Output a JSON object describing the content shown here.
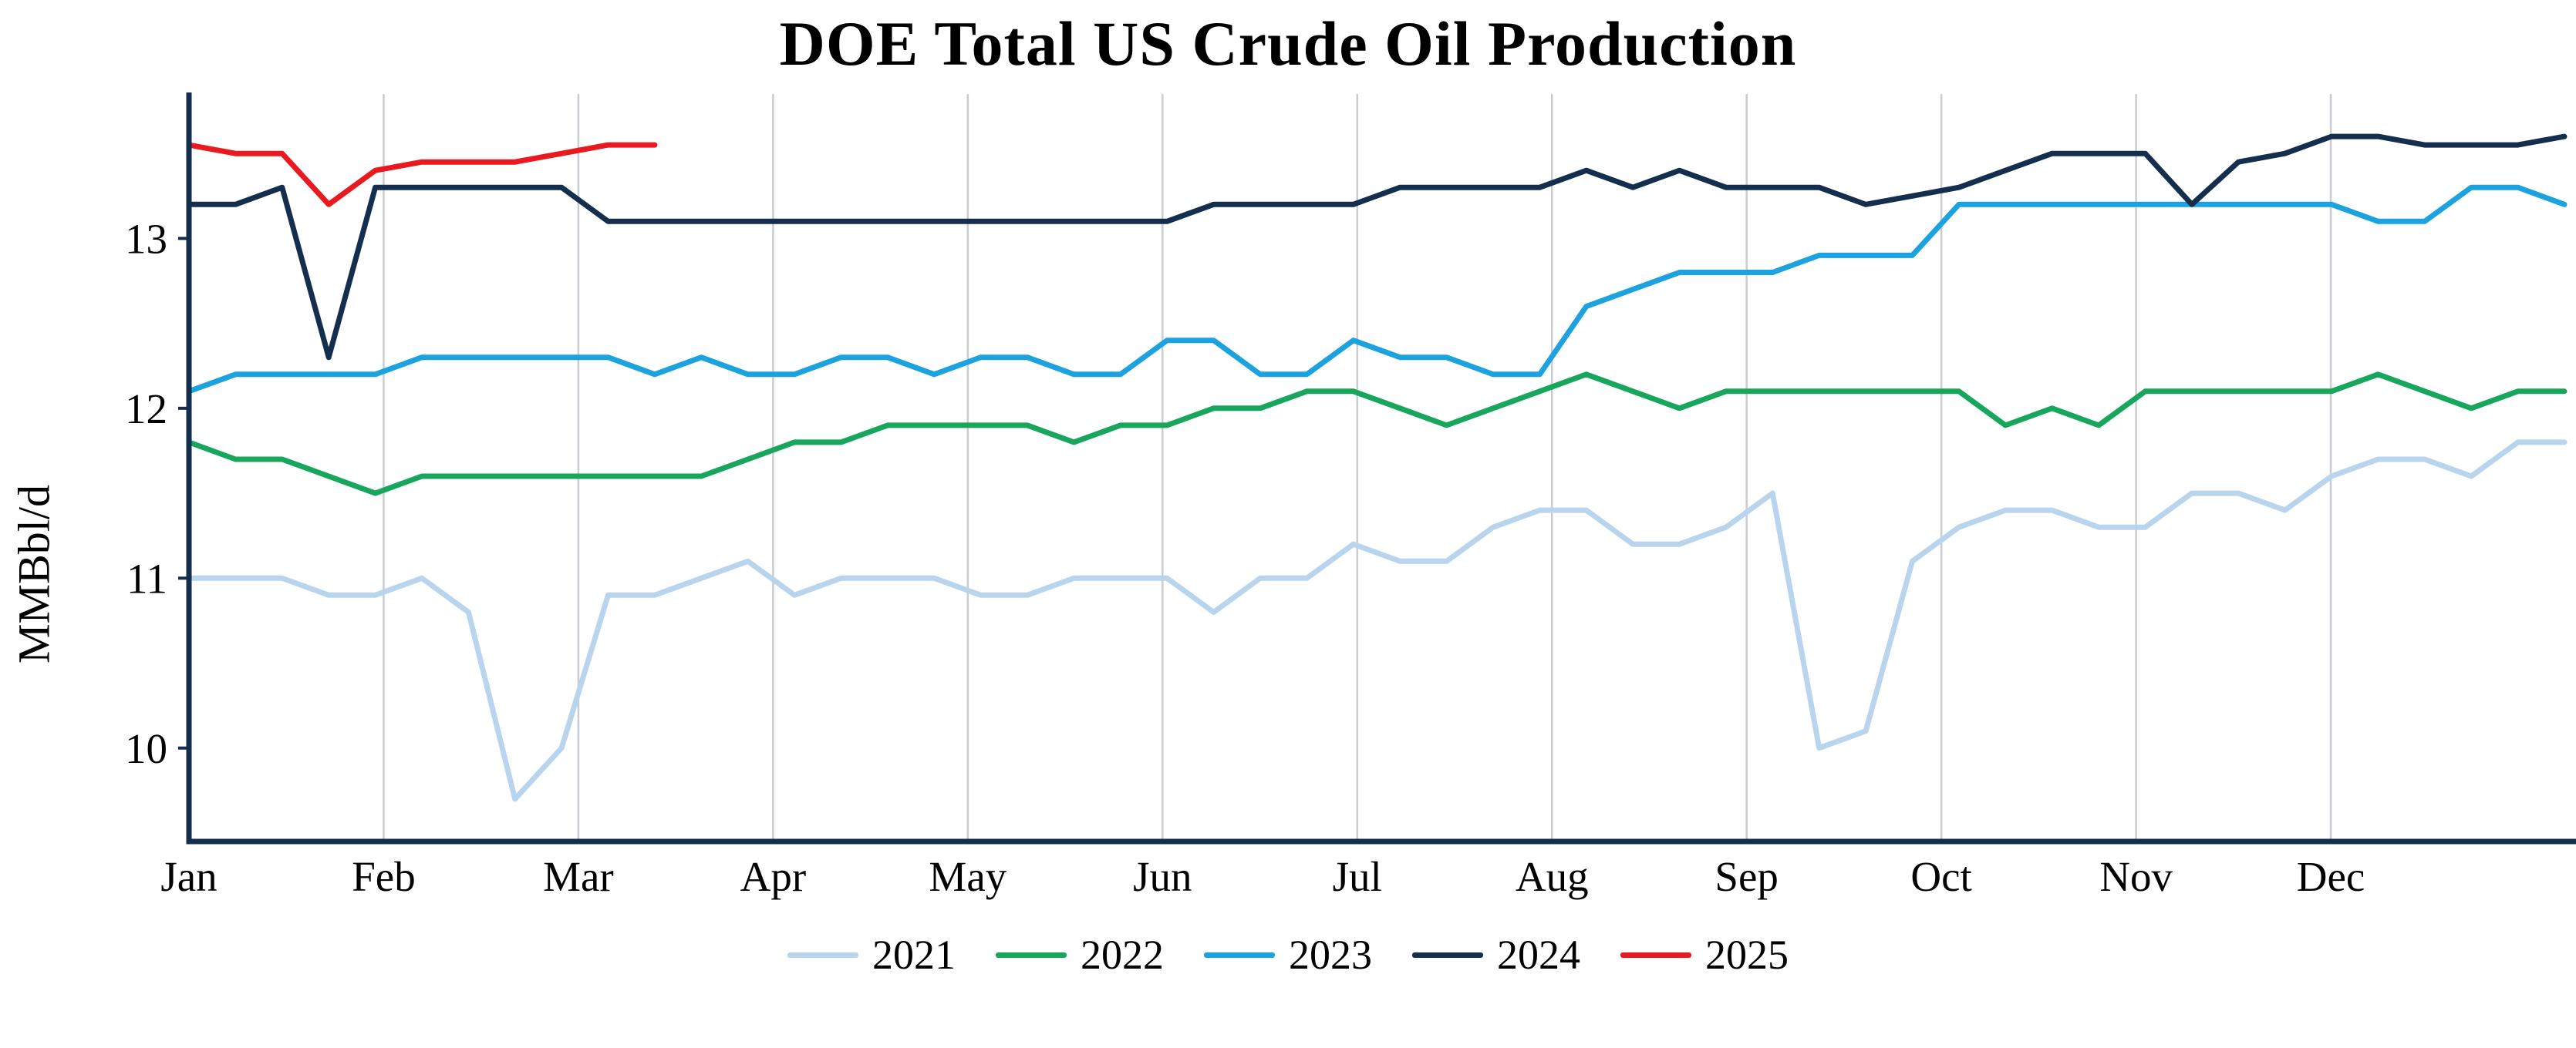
{
  "chart_data": {
    "type": "line",
    "title": "DOE Total US Crude Oil Production",
    "xlabel": "",
    "ylabel": "MMBbl/d",
    "x_unit": "week of year",
    "x_tick_labels": [
      "Jan",
      "Feb",
      "Mar",
      "Apr",
      "May",
      "Jun",
      "Jul",
      "Aug",
      "Sep",
      "Oct",
      "Nov",
      "Dec"
    ],
    "y_ticks": [
      10,
      11,
      12,
      13
    ],
    "ylim": [
      9.45,
      13.85
    ],
    "weeks_per_year": 52,
    "grid": "vertical-month-gridlines-only",
    "legend_position": "bottom-center",
    "axis_color": "#142f4d",
    "gridline_color": "#c9ccd1",
    "series": [
      {
        "name": "2021",
        "color": "#b9d5ee",
        "values": [
          11.0,
          11.0,
          11.0,
          10.9,
          10.9,
          11.0,
          10.8,
          9.7,
          10.0,
          10.9,
          10.9,
          11.0,
          11.1,
          10.9,
          11.0,
          11.0,
          11.0,
          10.9,
          10.9,
          11.0,
          11.0,
          11.0,
          10.8,
          11.0,
          11.0,
          11.2,
          11.1,
          11.1,
          11.3,
          11.4,
          11.4,
          11.2,
          11.2,
          11.3,
          11.5,
          10.0,
          10.1,
          11.1,
          11.3,
          11.4,
          11.4,
          11.3,
          11.3,
          11.5,
          11.5,
          11.4,
          11.6,
          11.7,
          11.7,
          11.6,
          11.8,
          11.8
        ]
      },
      {
        "name": "2022",
        "color": "#18a55c",
        "values": [
          11.8,
          11.7,
          11.7,
          11.6,
          11.5,
          11.6,
          11.6,
          11.6,
          11.6,
          11.6,
          11.6,
          11.6,
          11.7,
          11.8,
          11.8,
          11.9,
          11.9,
          11.9,
          11.9,
          11.8,
          11.9,
          11.9,
          12.0,
          12.0,
          12.1,
          12.1,
          12.0,
          11.9,
          12.0,
          12.1,
          12.2,
          12.1,
          12.0,
          12.1,
          12.1,
          12.1,
          12.1,
          12.1,
          12.1,
          11.9,
          12.0,
          11.9,
          12.1,
          12.1,
          12.1,
          12.1,
          12.1,
          12.2,
          12.1,
          12.0,
          12.1,
          12.1
        ]
      },
      {
        "name": "2023",
        "color": "#1da2e0",
        "values": [
          12.1,
          12.2,
          12.2,
          12.2,
          12.2,
          12.3,
          12.3,
          12.3,
          12.3,
          12.3,
          12.2,
          12.3,
          12.2,
          12.2,
          12.3,
          12.3,
          12.2,
          12.3,
          12.3,
          12.2,
          12.2,
          12.4,
          12.4,
          12.2,
          12.2,
          12.4,
          12.3,
          12.3,
          12.2,
          12.2,
          12.6,
          12.7,
          12.8,
          12.8,
          12.8,
          12.9,
          12.9,
          12.9,
          13.2,
          13.2,
          13.2,
          13.2,
          13.2,
          13.2,
          13.2,
          13.2,
          13.2,
          13.1,
          13.1,
          13.3,
          13.3,
          13.2
        ]
      },
      {
        "name": "2024",
        "color": "#142f4d",
        "values": [
          13.2,
          13.2,
          13.3,
          12.3,
          13.3,
          13.3,
          13.3,
          13.3,
          13.3,
          13.1,
          13.1,
          13.1,
          13.1,
          13.1,
          13.1,
          13.1,
          13.1,
          13.1,
          13.1,
          13.1,
          13.1,
          13.1,
          13.2,
          13.2,
          13.2,
          13.2,
          13.3,
          13.3,
          13.3,
          13.3,
          13.4,
          13.3,
          13.4,
          13.3,
          13.3,
          13.3,
          13.2,
          13.25,
          13.3,
          13.4,
          13.5,
          13.5,
          13.5,
          13.2,
          13.45,
          13.5,
          13.6,
          13.6,
          13.55,
          13.55,
          13.55,
          13.6
        ]
      },
      {
        "name": "2025",
        "color": "#e8191f",
        "values": [
          13.55,
          13.5,
          13.5,
          13.2,
          13.4,
          13.45,
          13.45,
          13.45,
          13.5,
          13.55,
          13.55
        ]
      }
    ]
  }
}
